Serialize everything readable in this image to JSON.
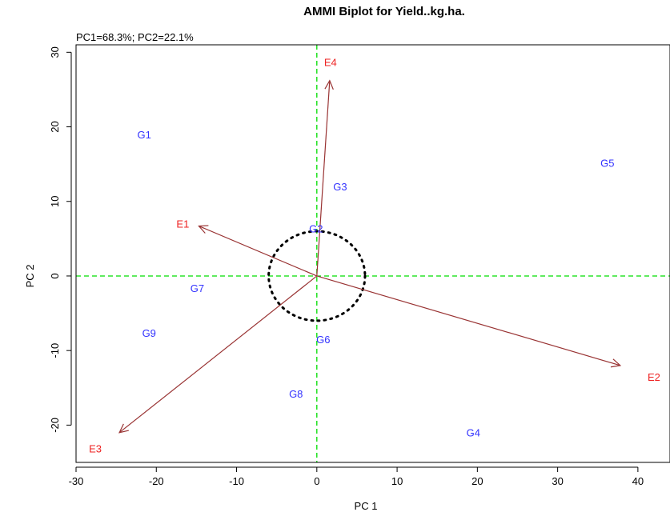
{
  "chart_data": {
    "type": "scatter",
    "title": "AMMI Biplot for Yield..kg.ha.",
    "subtitle": "PC1=68.3%; PC2=22.1%",
    "xlabel": "PC 1",
    "ylabel": "PC 2",
    "xlim": [
      -30,
      44
    ],
    "ylim": [
      -25,
      31
    ],
    "xticks": [
      -30,
      -20,
      -10,
      0,
      10,
      20,
      30,
      40
    ],
    "yticks": [
      -20,
      -10,
      0,
      10,
      20,
      30
    ],
    "reference_lines": {
      "x": 0,
      "y": 0,
      "style": "dashed",
      "color": "#00dd00"
    },
    "circle": {
      "center": [
        0,
        0
      ],
      "radius": 6,
      "style": "dotted",
      "color": "#000000"
    },
    "genotypes": {
      "color": "#3333ff",
      "points": [
        {
          "label": "G1",
          "x": -21.5,
          "y": 19.0
        },
        {
          "label": "G2",
          "x": -0.1,
          "y": 6.4
        },
        {
          "label": "G3",
          "x": 2.9,
          "y": 12.0
        },
        {
          "label": "G4",
          "x": 19.5,
          "y": -21.0
        },
        {
          "label": "G5",
          "x": 36.2,
          "y": 15.2
        },
        {
          "label": "G6",
          "x": 0.8,
          "y": -8.5
        },
        {
          "label": "G7",
          "x": -14.9,
          "y": -1.6
        },
        {
          "label": "G8",
          "x": -2.6,
          "y": -15.8
        },
        {
          "label": "G9",
          "x": -20.9,
          "y": -7.6
        }
      ]
    },
    "environments": {
      "color": "#ee2222",
      "arrow_color": "#993333",
      "points": [
        {
          "label": "E1",
          "x": -16.7,
          "y": 7.0,
          "arrow_end": [
            -14.7,
            6.7
          ]
        },
        {
          "label": "E2",
          "x": 42.0,
          "y": -13.5,
          "arrow_end": [
            37.8,
            -12.0
          ]
        },
        {
          "label": "E3",
          "x": -27.6,
          "y": -23.1,
          "arrow_end": [
            -24.6,
            -21.0
          ]
        },
        {
          "label": "E4",
          "x": 1.7,
          "y": 28.7,
          "arrow_end": [
            1.6,
            26.2
          ]
        }
      ]
    }
  }
}
